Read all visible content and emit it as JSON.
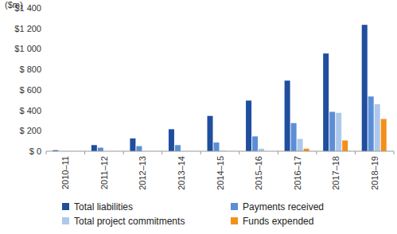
{
  "chart_data": {
    "type": "bar",
    "y_label": "($m)",
    "categories": [
      "2010–11",
      "2011–12",
      "2012–13",
      "2013–14",
      "2014–15",
      "2015–16",
      "2016–17",
      "2017–18",
      "2018–19"
    ],
    "series": [
      {
        "name": "Total liabilities",
        "color": "#1f4e9e",
        "values": [
          10,
          60,
          125,
          215,
          345,
          495,
          690,
          955,
          1235
        ]
      },
      {
        "name": "Payments received",
        "color": "#5b8ed6",
        "values": [
          0,
          35,
          50,
          60,
          85,
          145,
          275,
          385,
          535
        ]
      },
      {
        "name": "Total project commitments",
        "color": "#aec8ec",
        "values": [
          0,
          0,
          0,
          0,
          5,
          25,
          120,
          375,
          460
        ]
      },
      {
        "name": "Funds expended",
        "color": "#f39019",
        "values": [
          0,
          0,
          0,
          0,
          0,
          0,
          25,
          105,
          315
        ]
      }
    ],
    "ylim": [
      0,
      1400
    ],
    "yticks": [
      {
        "value": 0,
        "label": "$ 0"
      },
      {
        "value": 200,
        "label": "$ 200"
      },
      {
        "value": 400,
        "label": "$ 400"
      },
      {
        "value": 600,
        "label": "$ 600"
      },
      {
        "value": 800,
        "label": "$ 800"
      },
      {
        "value": 1000,
        "label": "$1 000"
      },
      {
        "value": 1200,
        "label": "$1 200"
      },
      {
        "value": 1400,
        "label": "$1 400"
      }
    ],
    "grid": false,
    "legend": "bottom"
  }
}
